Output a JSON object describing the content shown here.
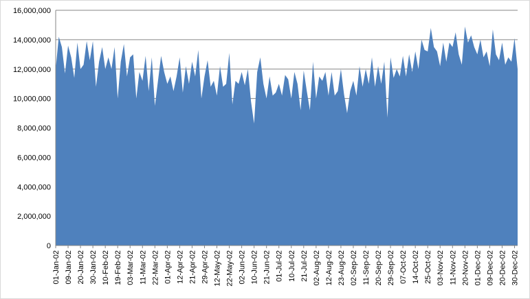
{
  "chart_data": {
    "type": "area",
    "color": "#4f81bd",
    "grid": true,
    "ylim": [
      0,
      16000000
    ],
    "yticks": [
      0,
      {
        "value": 2000000,
        "label": "2,000,000"
      },
      {
        "value": 4000000,
        "label": "4,000,000"
      },
      {
        "value": 6000000,
        "label": "6,000,000"
      },
      {
        "value": 8000000,
        "label": "8,000,000"
      },
      {
        "value": 10000000,
        "label": "10,000,000"
      },
      {
        "value": 12000000,
        "label": "12,000,000"
      },
      {
        "value": 14000000,
        "label": "14,000,000"
      },
      {
        "value": 16000000,
        "label": "16,000,000"
      }
    ],
    "categories": [
      "01-Jan-02",
      null,
      null,
      null,
      "09-Jan-02",
      null,
      null,
      null,
      "20-Jan-02",
      null,
      null,
      null,
      "30-Jan-02",
      null,
      null,
      null,
      "10-Feb-02",
      null,
      null,
      null,
      "19-Feb-02",
      null,
      null,
      null,
      "03-Mar-02",
      null,
      null,
      null,
      "11-Mar-02",
      null,
      null,
      null,
      "22-Mar-02",
      null,
      null,
      null,
      "01-Apr-02",
      null,
      null,
      null,
      "12-Apr-02",
      null,
      null,
      null,
      "21-Apr-02",
      null,
      null,
      null,
      "29-Apr-02",
      null,
      null,
      null,
      "12-May-02",
      null,
      null,
      null,
      "22-May-02",
      null,
      null,
      null,
      "02-Jun-02",
      null,
      null,
      null,
      "10-Jun-02",
      null,
      null,
      null,
      "21-Jun-02",
      null,
      null,
      null,
      "01-Jul-02",
      null,
      null,
      null,
      "10-Jul-02",
      null,
      null,
      null,
      "21-Jul-02",
      null,
      null,
      null,
      "02-Aug-02",
      null,
      null,
      null,
      "12-Aug-02",
      null,
      null,
      null,
      "23-Aug-02",
      null,
      null,
      null,
      "02-Sep-02",
      null,
      null,
      null,
      "11-Sep-02",
      null,
      null,
      null,
      "20-Sep-02",
      null,
      null,
      null,
      "29-Sep-02",
      null,
      null,
      null,
      "07-Oct-02",
      null,
      null,
      null,
      "14-Oct-02",
      null,
      null,
      null,
      "25-Oct-02",
      null,
      null,
      null,
      "03-Nov-02",
      null,
      null,
      null,
      "11-Nov-02",
      null,
      null,
      null,
      "20-Nov-02",
      null,
      null,
      null,
      "01-Dec-02",
      null,
      null,
      null,
      "09-Dec-02",
      null,
      null,
      null,
      "20-Dec-02",
      null,
      null,
      null,
      "30-Dec-02",
      null
    ],
    "values": [
      12000000,
      14200000,
      13500000,
      11700000,
      13600000,
      12800000,
      11400000,
      13800000,
      12000000,
      12300000,
      13900000,
      12600000,
      13900000,
      10800000,
      12500000,
      13500000,
      12000000,
      12800000,
      12000000,
      13500000,
      10000000,
      12500000,
      13700000,
      11500000,
      12800000,
      13000000,
      10000000,
      11800000,
      11200000,
      12900000,
      10500000,
      12800000,
      9500000,
      11200000,
      12900000,
      11800000,
      11000000,
      11500000,
      10500000,
      11500000,
      12800000,
      10400000,
      12200000,
      11000000,
      12500000,
      11500000,
      13300000,
      10000000,
      11500000,
      12600000,
      10800000,
      11200000,
      10200000,
      12200000,
      10800000,
      11000000,
      13100000,
      9600000,
      11200000,
      11000000,
      11800000,
      10900000,
      12000000,
      9800000,
      8300000,
      11800000,
      12800000,
      11000000,
      10000000,
      11500000,
      10200000,
      10400000,
      11000000,
      10200000,
      11600000,
      11300000,
      10000000,
      11800000,
      11000000,
      9200000,
      11900000,
      10500000,
      9200000,
      12500000,
      10000000,
      11500000,
      11200000,
      11800000,
      10200000,
      11800000,
      10200000,
      10500000,
      12000000,
      10300000,
      9000000,
      10500000,
      11200000,
      10200000,
      12200000,
      10800000,
      12000000,
      11000000,
      12800000,
      10800000,
      12200000,
      11000000,
      12500000,
      8700000,
      12800000,
      11400000,
      12000000,
      11500000,
      12900000,
      11500000,
      13000000,
      11800000,
      13200000,
      12000000,
      14000000,
      13300000,
      13200000,
      14800000,
      13500000,
      13200000,
      12200000,
      13800000,
      12500000,
      13800000,
      13500000,
      14500000,
      13000000,
      12300000,
      14900000,
      13800000,
      14300000,
      13500000,
      13000000,
      14000000,
      12800000,
      13200000,
      12200000,
      14700000,
      13000000,
      12600000,
      13800000,
      12300000,
      12800000,
      12500000,
      14100000,
      12000000
    ]
  }
}
